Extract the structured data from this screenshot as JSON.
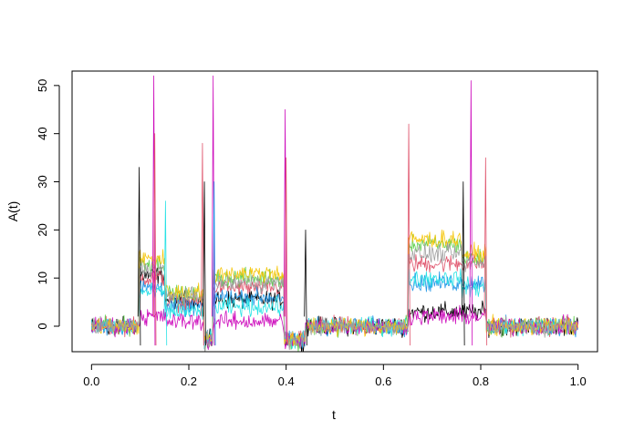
{
  "chart_data": {
    "type": "line",
    "title": "",
    "xlabel": "t",
    "ylabel": "A(t)",
    "xlim": [
      -0.04,
      1.04
    ],
    "ylim": [
      -5.3,
      53
    ],
    "xticks": [
      0.0,
      0.2,
      0.4,
      0.6,
      0.8,
      1.0
    ],
    "xtick_labels": [
      "0.0",
      "0.2",
      "0.4",
      "0.6",
      "0.8",
      "1.0"
    ],
    "yticks": [
      0,
      10,
      20,
      30,
      40,
      50
    ],
    "ytick_labels": [
      "0",
      "10",
      "20",
      "30",
      "40",
      "50"
    ],
    "grid": false,
    "legend": "none",
    "noise": 1.6,
    "spikes": [
      {
        "x": 0.098,
        "y": 33,
        "color": "#000000"
      },
      {
        "x": 0.128,
        "y": 52,
        "color": "#CD0BBC"
      },
      {
        "x": 0.13,
        "y": 40,
        "color": "#DF536B"
      },
      {
        "x": 0.152,
        "y": 26,
        "color": "#28E2E5"
      },
      {
        "x": 0.228,
        "y": 38,
        "color": "#DF536B"
      },
      {
        "x": 0.232,
        "y": 30,
        "color": "#000000"
      },
      {
        "x": 0.25,
        "y": 52,
        "color": "#CD0BBC"
      },
      {
        "x": 0.252,
        "y": 30,
        "color": "#2297E6"
      },
      {
        "x": 0.398,
        "y": 45,
        "color": "#CD0BBC"
      },
      {
        "x": 0.4,
        "y": 35,
        "color": "#DF536B"
      },
      {
        "x": 0.44,
        "y": 20,
        "color": "#000000"
      },
      {
        "x": 0.652,
        "y": 42,
        "color": "#DF536B"
      },
      {
        "x": 0.764,
        "y": 30,
        "color": "#000000"
      },
      {
        "x": 0.78,
        "y": 51,
        "color": "#CD0BBC"
      },
      {
        "x": 0.81,
        "y": 35,
        "color": "#DF536B"
      }
    ],
    "series": [
      {
        "color": "#000000",
        "levels": [
          0,
          10.5,
          5.5,
          5.5,
          0,
          0,
          3,
          3,
          0
        ]
      },
      {
        "color": "#DF536B",
        "levels": [
          0,
          10,
          5,
          8,
          0,
          0,
          13,
          13,
          0
        ]
      },
      {
        "color": "#61D04F",
        "levels": [
          0,
          13,
          6.5,
          10,
          0,
          0,
          17,
          14,
          0
        ]
      },
      {
        "color": "#2297E6",
        "levels": [
          0,
          8,
          4,
          6,
          0,
          0,
          9,
          9,
          0
        ]
      },
      {
        "color": "#28E2E5",
        "levels": [
          0,
          7,
          3,
          4,
          0,
          0,
          10,
          8,
          0
        ]
      },
      {
        "color": "#CD0BBC",
        "levels": [
          0,
          2,
          1,
          1,
          0,
          0,
          2,
          2,
          0
        ]
      },
      {
        "color": "#F5C710",
        "levels": [
          0,
          14,
          7,
          11,
          0,
          0,
          18,
          15,
          0
        ]
      },
      {
        "color": "#9E9E9E",
        "levels": [
          0,
          12,
          6,
          9,
          0,
          0,
          15,
          13,
          0
        ]
      }
    ],
    "segments": [
      {
        "from": 0.0,
        "to": 0.098
      },
      {
        "from": 0.098,
        "to": 0.15
      },
      {
        "from": 0.15,
        "to": 0.23
      },
      {
        "from": 0.25,
        "to": 0.395
      },
      {
        "from": 0.44,
        "to": 0.65
      },
      {
        "from": 0.65,
        "to": 0.65
      },
      {
        "from": 0.65,
        "to": 0.76
      },
      {
        "from": 0.76,
        "to": 0.81
      },
      {
        "from": 0.81,
        "to": 1.0
      }
    ]
  }
}
